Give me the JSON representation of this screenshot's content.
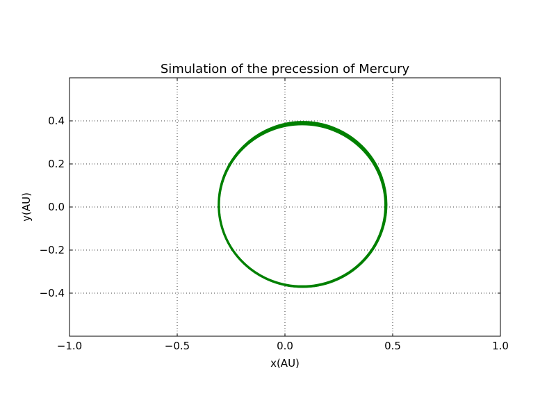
{
  "chart_data": {
    "type": "line",
    "title": "Simulation of the precession of Mercury",
    "xlabel": "x(AU)",
    "ylabel": "y(AU)",
    "xlim": [
      -1.0,
      1.0
    ],
    "ylim": [
      -0.6,
      0.6
    ],
    "xticks": [
      -1.0,
      -0.5,
      0.0,
      0.5,
      1.0
    ],
    "xtick_labels": [
      "−1.0",
      "−0.5",
      "0.0",
      "0.5",
      "1.0"
    ],
    "yticks": [
      -0.4,
      -0.2,
      0.0,
      0.2,
      0.4
    ],
    "ytick_labels": [
      "−0.4",
      "−0.2",
      "0.0",
      "0.2",
      "0.4"
    ],
    "grid": true,
    "grid_style": "dotted",
    "series": [
      {
        "color": "#008000",
        "orbit": {
          "perihelion_x": -0.307,
          "aphelion_x": 0.467,
          "center_x": 0.08,
          "semi_major_axis": 0.387,
          "semi_minor_axis": 0.379,
          "y_max": 0.387,
          "y_min": -0.369
        }
      }
    ]
  }
}
